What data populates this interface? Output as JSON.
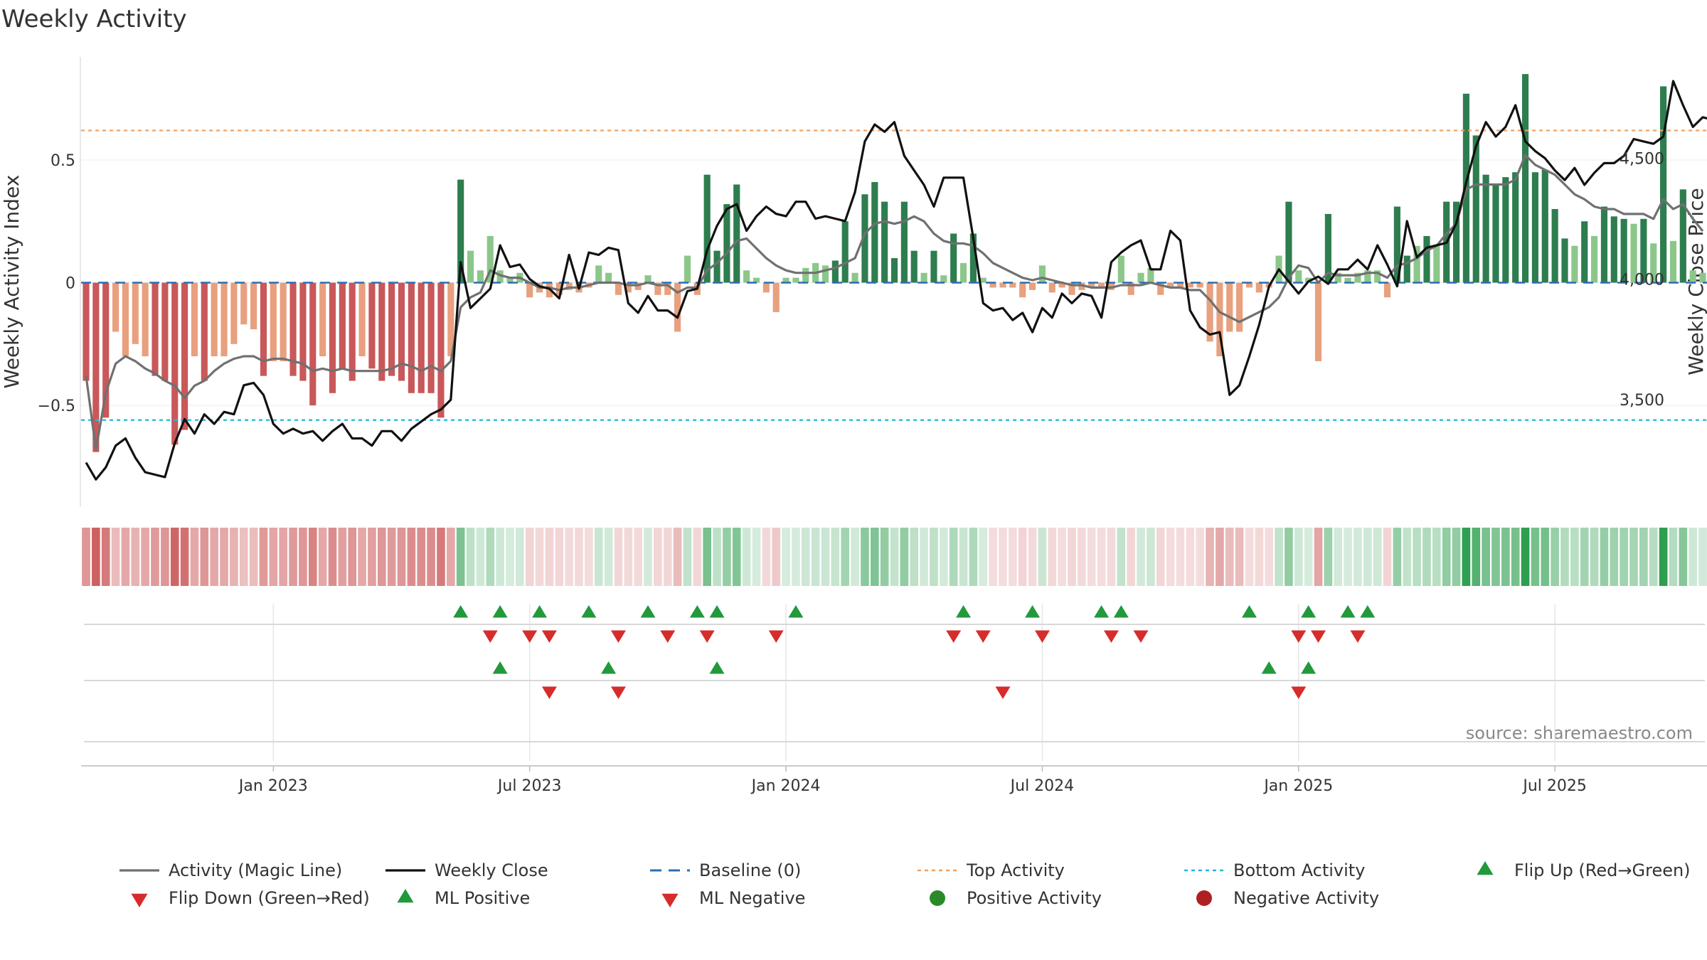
{
  "chart_data": {
    "type": "bar",
    "title": "Weekly Activity",
    "source": "source: sharemaestro.com",
    "ylabel": "Weekly Activity Index",
    "ylabel_right": "Weekly Close Price",
    "ylim": [
      -0.92,
      0.92
    ],
    "ylim_right": [
      3050,
      4920
    ],
    "yticks": [
      {
        "v": 0.5,
        "label": "0.5"
      },
      {
        "v": 0,
        "label": "0"
      },
      {
        "v": -0.5,
        "label": "−0.5"
      }
    ],
    "yticks_right": [
      {
        "v": 4500,
        "label": "4,500"
      },
      {
        "v": 4000,
        "label": "4,000"
      },
      {
        "v": 3500,
        "label": "3,500"
      }
    ],
    "xticks": [
      {
        "i": 19,
        "label": "Jan 2023"
      },
      {
        "i": 45,
        "label": "Jul 2023"
      },
      {
        "i": 71,
        "label": "Jan 2024"
      },
      {
        "i": 97,
        "label": "Jul 2024"
      },
      {
        "i": 123,
        "label": "Jan 2025"
      },
      {
        "i": 149,
        "label": "Jul 2025"
      }
    ],
    "start_week": "2022-09-12",
    "top_activity": 0.62,
    "bottom_activity": -0.56,
    "colors": {
      "pos_strong": "#2e7d4f",
      "pos_weak": "#8cc78a",
      "neg_strong": "#c8585a",
      "neg_weak": "#e8a07e",
      "magic": "#707070",
      "close": "#111111",
      "baseline": "#2a6fb0",
      "top": "#f0a060",
      "bottom": "#20b8d8",
      "tri_up": "#22993b",
      "tri_down": "#d62c2c"
    },
    "activity": [
      -0.4,
      -0.69,
      -0.55,
      -0.2,
      -0.3,
      -0.25,
      -0.3,
      -0.38,
      -0.4,
      -0.66,
      -0.6,
      -0.3,
      -0.4,
      -0.3,
      -0.3,
      -0.25,
      -0.17,
      -0.19,
      -0.38,
      -0.32,
      -0.32,
      -0.38,
      -0.4,
      -0.5,
      -0.3,
      -0.45,
      -0.35,
      -0.4,
      -0.3,
      -0.35,
      -0.4,
      -0.38,
      -0.4,
      -0.45,
      -0.45,
      -0.45,
      -0.55,
      -0.3,
      0.42,
      0.13,
      0.05,
      0.19,
      0.05,
      0.02,
      0.04,
      -0.06,
      -0.04,
      -0.06,
      -0.05,
      -0.03,
      -0.04,
      -0.02,
      0.07,
      0.04,
      -0.05,
      -0.04,
      -0.03,
      0.03,
      -0.05,
      -0.05,
      -0.2,
      0.11,
      -0.05,
      0.44,
      0.13,
      0.32,
      0.4,
      0.05,
      0.02,
      -0.04,
      -0.12,
      0.02,
      0.02,
      0.06,
      0.08,
      0.07,
      0.09,
      0.25,
      0.04,
      0.36,
      0.41,
      0.33,
      0.1,
      0.33,
      0.13,
      0.04,
      0.13,
      0.03,
      0.2,
      0.08,
      0.2,
      0.02,
      -0.02,
      -0.02,
      -0.02,
      -0.06,
      -0.03,
      0.07,
      -0.04,
      -0.02,
      -0.05,
      -0.03,
      -0.02,
      -0.02,
      -0.03,
      0.11,
      -0.05,
      0.04,
      0.06,
      -0.05,
      -0.02,
      -0.02,
      -0.02,
      -0.02,
      -0.24,
      -0.3,
      -0.2,
      -0.2,
      -0.02,
      -0.04,
      -0.02,
      0.11,
      0.33,
      0.05,
      0.02,
      -0.32,
      0.28,
      0.04,
      0.02,
      0.04,
      0.05,
      0.05,
      -0.06,
      0.31,
      0.11,
      0.15,
      0.19,
      0.15,
      0.33,
      0.33,
      0.77,
      0.6,
      0.44,
      0.4,
      0.43,
      0.45,
      0.85,
      0.45,
      0.46,
      0.3,
      0.18,
      0.15,
      0.25,
      0.19,
      0.31,
      0.27,
      0.26,
      0.24,
      0.26,
      0.16,
      0.8,
      0.17,
      0.38,
      0.05,
      0.04
    ],
    "magic_line": [
      -0.38,
      -0.68,
      -0.45,
      -0.33,
      -0.3,
      -0.32,
      -0.35,
      -0.37,
      -0.4,
      -0.42,
      -0.47,
      -0.42,
      -0.4,
      -0.36,
      -0.33,
      -0.31,
      -0.3,
      -0.3,
      -0.32,
      -0.31,
      -0.31,
      -0.32,
      -0.33,
      -0.36,
      -0.35,
      -0.36,
      -0.35,
      -0.36,
      -0.36,
      -0.36,
      -0.36,
      -0.35,
      -0.33,
      -0.34,
      -0.36,
      -0.34,
      -0.36,
      -0.32,
      -0.1,
      -0.06,
      -0.04,
      0.05,
      0.03,
      0.02,
      0.02,
      0.0,
      -0.02,
      -0.02,
      -0.03,
      -0.02,
      -0.02,
      -0.01,
      0.0,
      0.0,
      0.0,
      -0.01,
      -0.01,
      0.0,
      -0.01,
      -0.01,
      -0.04,
      -0.02,
      -0.02,
      0.05,
      0.08,
      0.12,
      0.17,
      0.18,
      0.14,
      0.1,
      0.07,
      0.05,
      0.04,
      0.04,
      0.04,
      0.05,
      0.06,
      0.08,
      0.1,
      0.2,
      0.24,
      0.25,
      0.24,
      0.25,
      0.27,
      0.25,
      0.2,
      0.17,
      0.16,
      0.16,
      0.15,
      0.12,
      0.08,
      0.06,
      0.04,
      0.02,
      0.01,
      0.02,
      0.01,
      0.0,
      -0.01,
      -0.01,
      -0.02,
      -0.02,
      -0.02,
      -0.01,
      -0.01,
      -0.01,
      0.0,
      -0.01,
      -0.02,
      -0.02,
      -0.03,
      -0.03,
      -0.07,
      -0.12,
      -0.14,
      -0.16,
      -0.14,
      -0.12,
      -0.1,
      -0.06,
      0.02,
      0.07,
      0.06,
      0.0,
      0.04,
      0.03,
      0.03,
      0.03,
      0.04,
      0.04,
      0.02,
      0.07,
      0.08,
      0.1,
      0.13,
      0.15,
      0.2,
      0.24,
      0.38,
      0.4,
      0.4,
      0.4,
      0.4,
      0.42,
      0.52,
      0.48,
      0.46,
      0.44,
      0.4,
      0.36,
      0.34,
      0.31,
      0.3,
      0.3,
      0.28,
      0.28,
      0.28,
      0.26,
      0.34,
      0.3,
      0.32,
      0.26,
      0.21
    ],
    "weekly_close": [
      3240,
      3170,
      3220,
      3310,
      3340,
      3260,
      3200,
      3190,
      3180,
      3320,
      3420,
      3360,
      3440,
      3400,
      3450,
      3440,
      3560,
      3570,
      3520,
      3400,
      3360,
      3380,
      3360,
      3370,
      3330,
      3370,
      3400,
      3340,
      3340,
      3310,
      3370,
      3370,
      3330,
      3380,
      3410,
      3440,
      3460,
      3500,
      4070,
      3880,
      3920,
      3960,
      4140,
      4050,
      4060,
      4000,
      3970,
      3960,
      3920,
      4100,
      3960,
      4110,
      4100,
      4130,
      4120,
      3900,
      3860,
      3930,
      3870,
      3870,
      3840,
      3950,
      3960,
      4120,
      4220,
      4290,
      4310,
      4200,
      4260,
      4300,
      4270,
      4260,
      4320,
      4320,
      4250,
      4260,
      4250,
      4240,
      4360,
      4570,
      4640,
      4610,
      4650,
      4510,
      4450,
      4390,
      4300,
      4420,
      4420,
      4420,
      4170,
      3900,
      3870,
      3880,
      3830,
      3860,
      3780,
      3880,
      3840,
      3940,
      3900,
      3940,
      3930,
      3840,
      4070,
      4110,
      4140,
      4160,
      4040,
      4040,
      4200,
      4160,
      3870,
      3800,
      3770,
      3780,
      3520,
      3560,
      3680,
      3810,
      3970,
      4040,
      3990,
      3940,
      3990,
      4010,
      3980,
      4040,
      4040,
      4080,
      4040,
      4140,
      4060,
      3970,
      4240,
      4090,
      4130,
      4140,
      4150,
      4230,
      4400,
      4550,
      4650,
      4590,
      4630,
      4720,
      4570,
      4530,
      4500,
      4450,
      4410,
      4460,
      4390,
      4440,
      4480,
      4480,
      4510,
      4580,
      4570,
      4560,
      4590,
      4820,
      4720,
      4630,
      4670,
      4660
    ],
    "flip_up": [
      38,
      42,
      46,
      51,
      57,
      62,
      64,
      72,
      89,
      96,
      103,
      105,
      118,
      124,
      128,
      130
    ],
    "flip_down": [
      41,
      45,
      47,
      54,
      59,
      63,
      70,
      88,
      91,
      97,
      104,
      107,
      123,
      125,
      129
    ],
    "ml_positive": [
      42,
      53,
      64,
      120,
      124
    ],
    "ml_negative": [
      47,
      54,
      93,
      123
    ],
    "legend": [
      {
        "label": "Activity (Magic Line)",
        "kind": "line",
        "color": "#707070"
      },
      {
        "label": "Weekly Close",
        "kind": "line",
        "color": "#111111"
      },
      {
        "label": "Baseline (0)",
        "kind": "dash",
        "color": "#2a6fb0"
      },
      {
        "label": "Top Activity",
        "kind": "dot",
        "color": "#f0a060"
      },
      {
        "label": "Bottom Activity",
        "kind": "dot",
        "color": "#20b8d8"
      },
      {
        "label": "Flip Up (Red→Green)",
        "kind": "tri_up",
        "color": "#22993b"
      },
      {
        "label": "Flip Down (Green→Red)",
        "kind": "tri_down",
        "color": "#d62c2c"
      },
      {
        "label": "ML Positive",
        "kind": "tri_up",
        "color": "#22993b"
      },
      {
        "label": "ML Negative",
        "kind": "tri_down",
        "color": "#d62c2c"
      },
      {
        "label": "Positive Activity",
        "kind": "circle",
        "color": "#2a8a2a"
      },
      {
        "label": "Negative Activity",
        "kind": "circle",
        "color": "#b02020"
      }
    ]
  }
}
